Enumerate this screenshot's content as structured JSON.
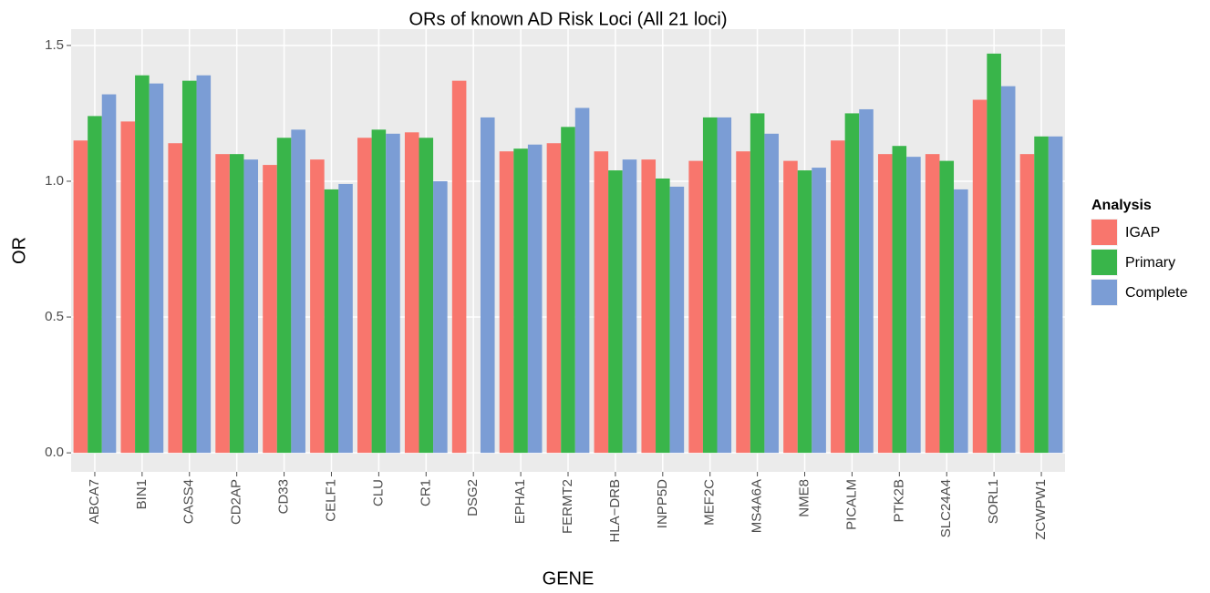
{
  "chart_data": {
    "type": "bar",
    "title": "ORs of known AD Risk Loci (All 21 loci)",
    "x_label": "GENE",
    "y_label": "OR",
    "legend_title": "Analysis",
    "legend_position": "right",
    "categories": [
      "ABCA7",
      "BIN1",
      "CASS4",
      "CD2AP",
      "CD33",
      "CELF1",
      "CLU",
      "CR1",
      "DSG2",
      "EPHA1",
      "FERMT2",
      "HLA−DRB",
      "INPP5D",
      "MEF2C",
      "MS4A6A",
      "NME8",
      "PICALM",
      "PTK2B",
      "SLC24A4",
      "SORL1",
      "ZCWPW1"
    ],
    "series": [
      {
        "name": "IGAP",
        "color": "#F8766D",
        "values": [
          1.15,
          1.22,
          1.14,
          1.1,
          1.06,
          1.08,
          1.16,
          1.18,
          1.37,
          1.11,
          1.14,
          1.11,
          1.08,
          1.075,
          1.11,
          1.075,
          1.15,
          1.1,
          1.1,
          1.3,
          1.1
        ]
      },
      {
        "name": "Primary",
        "color": "#39B54A",
        "values": [
          1.24,
          1.39,
          1.37,
          1.1,
          1.16,
          0.97,
          1.19,
          1.16,
          null,
          1.12,
          1.2,
          1.04,
          1.01,
          1.235,
          1.25,
          1.04,
          1.25,
          1.13,
          1.075,
          1.47,
          1.165
        ]
      },
      {
        "name": "Complete",
        "color": "#7B9DD5",
        "values": [
          1.32,
          1.36,
          1.39,
          1.08,
          1.19,
          0.99,
          1.175,
          1.0,
          1.235,
          1.135,
          1.27,
          1.08,
          0.98,
          1.235,
          1.175,
          1.05,
          1.265,
          1.09,
          0.97,
          1.35,
          1.165
        ]
      }
    ],
    "ylim": [
      -0.07,
      1.56
    ],
    "yticks": [
      {
        "value": 0,
        "label": "0.0"
      },
      0.5,
      {
        "value": 1,
        "label": "1.0"
      },
      1.5
    ],
    "grid": true
  }
}
